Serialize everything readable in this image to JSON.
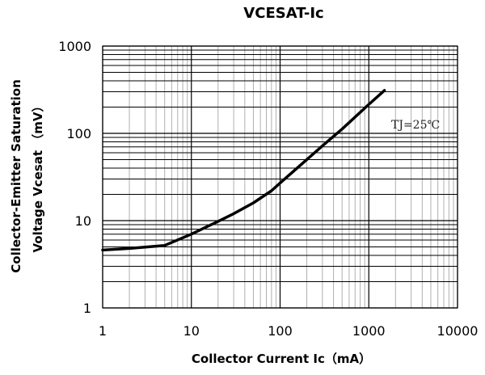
{
  "chart_data": {
    "type": "line",
    "title": "VCESAT-Ic",
    "xlabel": "Collector Current Ic（mA）",
    "ylabel_lines": [
      "Collector-Emitter Saturation",
      "Voltage Vcesat （mV）"
    ],
    "x_scale": "log",
    "y_scale": "log",
    "xlim": [
      1,
      10000
    ],
    "ylim": [
      1,
      1000
    ],
    "x_ticks": [
      1,
      10,
      100,
      1000,
      10000
    ],
    "x_tick_labels": [
      "1",
      "10",
      "100",
      "1000",
      "10000"
    ],
    "y_ticks": [
      1,
      10,
      100,
      1000
    ],
    "y_tick_labels": [
      "1",
      "10",
      "100",
      "1000"
    ],
    "grid": true,
    "annotation": "TJ=25℃",
    "series": [
      {
        "x": [
          1,
          2,
          5,
          10,
          20,
          30,
          50,
          80,
          100,
          200,
          300,
          500,
          1000,
          1500
        ],
        "y": [
          4.6,
          4.8,
          5.2,
          7.0,
          9.8,
          12,
          16,
          22,
          27,
          50,
          72,
          112,
          215,
          310
        ]
      }
    ],
    "colors": {
      "line": "#000000",
      "grid_major": "#000000",
      "grid_minor": "#b0b0b0"
    }
  }
}
